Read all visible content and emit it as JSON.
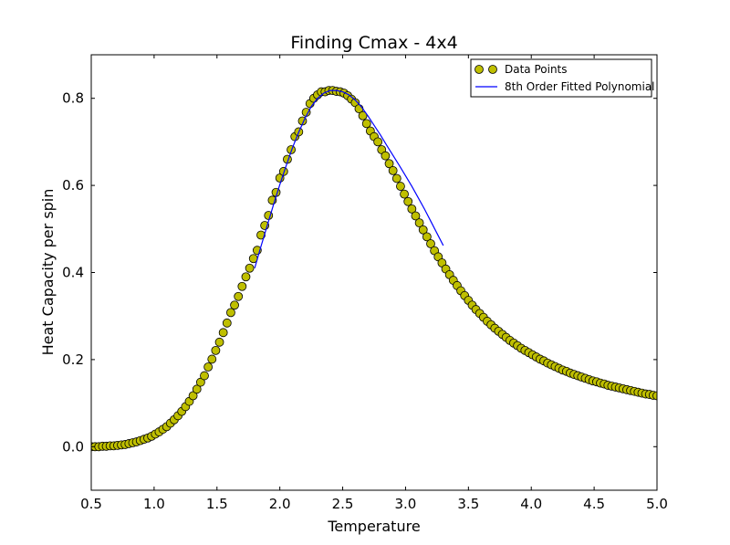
{
  "chart_data": {
    "type": "scatter",
    "title": "Finding Cmax - 4x4",
    "xlabel": "Temperature",
    "ylabel": "Heat Capacity per spin",
    "xlim": [
      0.5,
      5.0
    ],
    "ylim": [
      -0.1,
      0.9
    ],
    "xticks": [
      "0.5",
      "1.0",
      "1.5",
      "2.0",
      "2.5",
      "3.0",
      "3.5",
      "4.0",
      "4.5",
      "5.0"
    ],
    "yticks": [
      "0.0",
      "0.2",
      "0.4",
      "0.6",
      "0.8"
    ],
    "grid": false,
    "legend_position": "top-right",
    "series": [
      {
        "name": "Data Points",
        "kind": "scatter",
        "color": "#bfbf00",
        "x": [
          0.5,
          0.53,
          0.56,
          0.59,
          0.62,
          0.65,
          0.68,
          0.71,
          0.74,
          0.77,
          0.8,
          0.83,
          0.86,
          0.89,
          0.92,
          0.95,
          0.98,
          1.01,
          1.04,
          1.07,
          1.1,
          1.13,
          1.16,
          1.19,
          1.22,
          1.25,
          1.28,
          1.31,
          1.34,
          1.37,
          1.4,
          1.43,
          1.46,
          1.49,
          1.52,
          1.55,
          1.58,
          1.61,
          1.64,
          1.67,
          1.7,
          1.73,
          1.76,
          1.79,
          1.82,
          1.85,
          1.88,
          1.91,
          1.94,
          1.97,
          2.0,
          2.03,
          2.06,
          2.09,
          2.12,
          2.15,
          2.18,
          2.21,
          2.24,
          2.27,
          2.3,
          2.33,
          2.36,
          2.39,
          2.42,
          2.45,
          2.48,
          2.51,
          2.54,
          2.57,
          2.6,
          2.63,
          2.66,
          2.69,
          2.72,
          2.75,
          2.78,
          2.81,
          2.84,
          2.87,
          2.9,
          2.93,
          2.96,
          2.99,
          3.02,
          3.05,
          3.08,
          3.11,
          3.14,
          3.17,
          3.2,
          3.23,
          3.26,
          3.29,
          3.32,
          3.35,
          3.38,
          3.41,
          3.44,
          3.47,
          3.5,
          3.53,
          3.56,
          3.59,
          3.62,
          3.65,
          3.68,
          3.71,
          3.74,
          3.77,
          3.8,
          3.83,
          3.86,
          3.89,
          3.92,
          3.95,
          3.98,
          4.01,
          4.04,
          4.07,
          4.1,
          4.13,
          4.16,
          4.19,
          4.22,
          4.25,
          4.28,
          4.31,
          4.34,
          4.37,
          4.4,
          4.43,
          4.46,
          4.49,
          4.52,
          4.55,
          4.58,
          4.61,
          4.64,
          4.67,
          4.7,
          4.73,
          4.76,
          4.79,
          4.82,
          4.85,
          4.88,
          4.91,
          4.94,
          4.97,
          5.0
        ],
        "y": [
          0.0,
          0.0,
          0.0,
          0.001,
          0.001,
          0.002,
          0.002,
          0.003,
          0.004,
          0.005,
          0.007,
          0.009,
          0.011,
          0.014,
          0.017,
          0.02,
          0.024,
          0.029,
          0.034,
          0.04,
          0.046,
          0.054,
          0.062,
          0.071,
          0.081,
          0.092,
          0.104,
          0.117,
          0.132,
          0.148,
          0.163,
          0.183,
          0.201,
          0.221,
          0.24,
          0.262,
          0.284,
          0.308,
          0.325,
          0.345,
          0.368,
          0.39,
          0.41,
          0.432,
          0.451,
          0.486,
          0.508,
          0.531,
          0.566,
          0.584,
          0.617,
          0.632,
          0.66,
          0.682,
          0.712,
          0.723,
          0.748,
          0.768,
          0.788,
          0.8,
          0.808,
          0.815,
          0.815,
          0.818,
          0.818,
          0.816,
          0.815,
          0.812,
          0.806,
          0.798,
          0.79,
          0.776,
          0.76,
          0.742,
          0.725,
          0.712,
          0.7,
          0.682,
          0.668,
          0.65,
          0.634,
          0.616,
          0.598,
          0.58,
          0.563,
          0.546,
          0.53,
          0.514,
          0.498,
          0.482,
          0.466,
          0.45,
          0.436,
          0.422,
          0.408,
          0.395,
          0.382,
          0.37,
          0.358,
          0.347,
          0.336,
          0.325,
          0.315,
          0.306,
          0.297,
          0.288,
          0.28,
          0.272,
          0.265,
          0.258,
          0.251,
          0.244,
          0.238,
          0.232,
          0.226,
          0.221,
          0.216,
          0.211,
          0.206,
          0.201,
          0.197,
          0.192,
          0.188,
          0.184,
          0.18,
          0.176,
          0.173,
          0.169,
          0.166,
          0.163,
          0.16,
          0.157,
          0.154,
          0.151,
          0.149,
          0.146,
          0.144,
          0.141,
          0.139,
          0.137,
          0.135,
          0.133,
          0.131,
          0.129,
          0.127,
          0.125,
          0.123,
          0.121,
          0.12,
          0.118,
          0.117
        ]
      },
      {
        "name": "8th Order Fitted Polynomial",
        "kind": "line",
        "color": "#0000ff",
        "x": [
          1.8,
          1.85,
          1.9,
          1.95,
          2.0,
          2.05,
          2.1,
          2.15,
          2.2,
          2.25,
          2.3,
          2.35,
          2.4,
          2.45,
          2.5,
          2.55,
          2.6,
          2.65,
          2.7,
          2.75,
          2.8,
          2.85,
          2.9,
          2.95,
          3.0,
          3.05,
          3.1,
          3.15,
          3.2,
          3.25,
          3.3
        ],
        "y": [
          0.41,
          0.46,
          0.508,
          0.556,
          0.602,
          0.645,
          0.686,
          0.722,
          0.754,
          0.781,
          0.8,
          0.812,
          0.818,
          0.818,
          0.815,
          0.808,
          0.796,
          0.78,
          0.76,
          0.738,
          0.716,
          0.692,
          0.669,
          0.646,
          0.622,
          0.598,
          0.572,
          0.546,
          0.518,
          0.49,
          0.462
        ]
      }
    ]
  }
}
